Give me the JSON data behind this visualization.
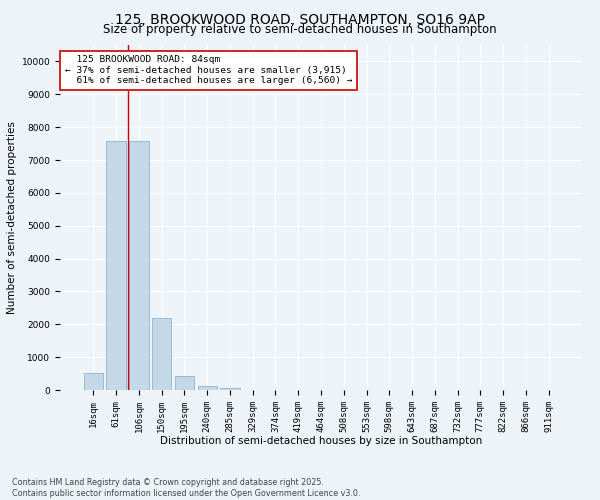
{
  "title_line1": "125, BROOKWOOD ROAD, SOUTHAMPTON, SO16 9AP",
  "title_line2": "Size of property relative to semi-detached houses in Southampton",
  "xlabel": "Distribution of semi-detached houses by size in Southampton",
  "ylabel": "Number of semi-detached properties",
  "categories": [
    "16sqm",
    "61sqm",
    "106sqm",
    "150sqm",
    "195sqm",
    "240sqm",
    "285sqm",
    "329sqm",
    "374sqm",
    "419sqm",
    "464sqm",
    "508sqm",
    "553sqm",
    "598sqm",
    "643sqm",
    "687sqm",
    "732sqm",
    "777sqm",
    "822sqm",
    "866sqm",
    "911sqm"
  ],
  "values": [
    530,
    7580,
    7580,
    2200,
    430,
    120,
    55,
    0,
    0,
    0,
    0,
    0,
    0,
    0,
    0,
    0,
    0,
    0,
    0,
    0,
    0
  ],
  "bar_color": "#c5d8e8",
  "bar_edge_color": "#7bacd0",
  "vline_x": 1.5,
  "vline_color": "#cc0000",
  "property_label": "125 BROOKWOOD ROAD: 84sqm",
  "pct_smaller": 37,
  "count_smaller": 3915,
  "pct_larger": 61,
  "count_larger": 6560,
  "annotation_box_color": "#cc0000",
  "annotation_bg": "#ffffff",
  "ylim": [
    0,
    10500
  ],
  "yticks": [
    0,
    1000,
    2000,
    3000,
    4000,
    5000,
    6000,
    7000,
    8000,
    9000,
    10000
  ],
  "footer": "Contains HM Land Registry data © Crown copyright and database right 2025.\nContains public sector information licensed under the Open Government Licence v3.0.",
  "bg_color": "#eef3f8",
  "grid_color": "#ffffff",
  "title_fontsize": 10,
  "subtitle_fontsize": 8.5,
  "axis_label_fontsize": 7.5,
  "tick_fontsize": 6.5,
  "annotation_fontsize": 6.8,
  "footer_fontsize": 5.8
}
